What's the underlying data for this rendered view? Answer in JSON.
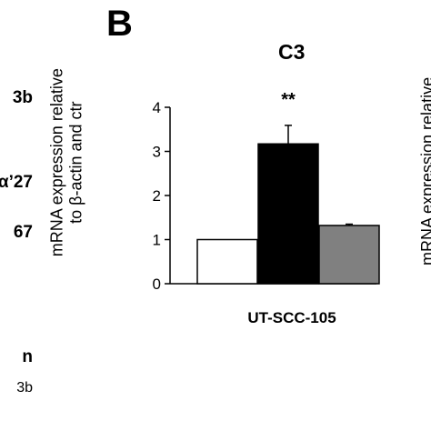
{
  "left_panel_fragments": [
    "3b",
    "α’27",
    "67",
    "n",
    "3b"
  ],
  "panel_letter": "B",
  "right_panel_fragment": "mRNA expression relative",
  "chart_data": {
    "type": "bar",
    "title": "C3",
    "ylabel_line1": "mRNA expression relative",
    "ylabel_line2": "to β-actin and ctr",
    "xlabel": "",
    "category": "UT-SCC-105",
    "ylim": [
      0,
      4
    ],
    "yticks": [
      0,
      1,
      2,
      3,
      4
    ],
    "grid": false,
    "legend": "none",
    "bars": [
      {
        "value": 1.0,
        "error": 0.0,
        "color": "#ffffff"
      },
      {
        "value": 3.17,
        "error": 0.42,
        "color": "#000000"
      },
      {
        "value": 1.32,
        "error": 0.03,
        "color": "#808080"
      }
    ],
    "annotation": {
      "text": "**",
      "bar_index": 1
    }
  }
}
